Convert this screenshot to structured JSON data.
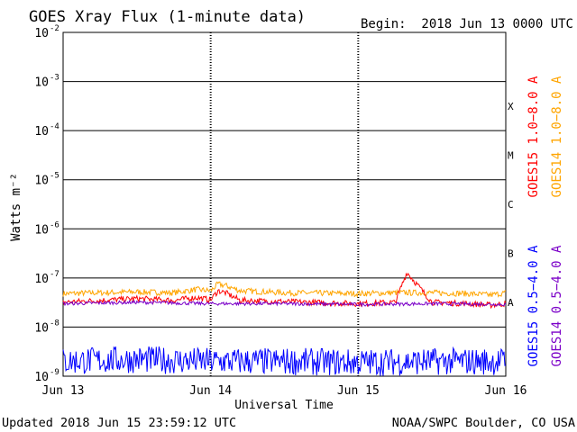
{
  "header": {
    "title": "GOES Xray Flux (1-minute data)",
    "begin": "Begin:  2018 Jun 13 0000 UTC"
  },
  "footer": {
    "updated": "Updated 2018 Jun 15 23:59:12 UTC",
    "credit": "NOAA/SWPC Boulder, CO USA"
  },
  "chart_data": {
    "type": "line",
    "title": "GOES Xray Flux (1-minute data)",
    "xlabel": "Universal Time",
    "ylabel": "Watts m⁻²",
    "yscale": "log",
    "ylim": [
      1e-09,
      0.01
    ],
    "y_ticks": [
      {
        "value": 1e-09,
        "label": "10",
        "exp": "-9"
      },
      {
        "value": 1e-08,
        "label": "10",
        "exp": "-8"
      },
      {
        "value": 1e-07,
        "label": "10",
        "exp": "-7"
      },
      {
        "value": 1e-06,
        "label": "10",
        "exp": "-6"
      },
      {
        "value": 1e-05,
        "label": "10",
        "exp": "-5"
      },
      {
        "value": 0.0001,
        "label": "10",
        "exp": "-4"
      },
      {
        "value": 0.001,
        "label": "10",
        "exp": "-3"
      },
      {
        "value": 0.01,
        "label": "10",
        "exp": "-2"
      }
    ],
    "x_ticks": [
      "Jun 13",
      "Jun 14",
      "Jun 15",
      "Jun 16"
    ],
    "xlim_days": [
      0,
      3
    ],
    "flare_classes": [
      {
        "label": "X",
        "value": 0.000316
      },
      {
        "label": "M",
        "value": 3.16e-05
      },
      {
        "label": "C",
        "value": 3.16e-06
      },
      {
        "label": "B",
        "value": 3.16e-07
      },
      {
        "label": "A",
        "value": 3.16e-08
      }
    ],
    "legend": [
      {
        "name": "GOES15 1.0−8.0 A",
        "color": "#ff0000"
      },
      {
        "name": "GOES14 1.0−8.0 A",
        "color": "#ffa500"
      },
      {
        "name": "GOES15 0.5−4.0 A",
        "color": "#0000ff"
      },
      {
        "name": "GOES14 0.5−4.0 A",
        "color": "#7b00c8"
      }
    ],
    "series": [
      {
        "name": "GOES14 1.0−8.0 A",
        "color": "#ffa500",
        "x": [
          0,
          0.25,
          0.5,
          0.75,
          0.9,
          1.0,
          1.05,
          1.1,
          1.2,
          1.5,
          2.0,
          2.25,
          2.5,
          2.75,
          2.9,
          3.0
        ],
        "y": [
          4.8e-08,
          5e-08,
          5.2e-08,
          5e-08,
          5.8e-08,
          5.5e-08,
          7.5e-08,
          7e-08,
          5.5e-08,
          5e-08,
          4.8e-08,
          5e-08,
          5e-08,
          4.8e-08,
          4.5e-08,
          5e-08
        ]
      },
      {
        "name": "GOES15 1.0−8.0 A",
        "color": "#ff0000",
        "x": [
          0,
          0.25,
          0.5,
          0.75,
          0.9,
          1.0,
          1.05,
          1.1,
          1.2,
          1.5,
          2.0,
          2.25,
          2.33,
          2.5,
          2.75,
          2.9,
          3.0
        ],
        "y": [
          3.2e-08,
          3.5e-08,
          3.8e-08,
          3.5e-08,
          4e-08,
          3.6e-08,
          5.5e-08,
          5e-08,
          3.5e-08,
          3.3e-08,
          3e-08,
          3.2e-08,
          1.3e-07,
          3.2e-08,
          3e-08,
          2.8e-08,
          3e-08
        ]
      },
      {
        "name": "GOES14 0.5−4.0 A",
        "color": "#7b00c8",
        "x": [
          0,
          0.5,
          1.0,
          1.5,
          2.0,
          2.5,
          3.0
        ],
        "y": [
          3e-08,
          3.2e-08,
          3e-08,
          3e-08,
          2.9e-08,
          3e-08,
          2.9e-08
        ]
      },
      {
        "name": "GOES15 0.5−4.0 A",
        "color": "#0000ff",
        "x": [
          0,
          0.5,
          1.0,
          1.5,
          2.0,
          2.5,
          3.0
        ],
        "y": [
          2e-09,
          2.2e-09,
          2e-09,
          2e-09,
          1.9e-09,
          2e-09,
          2e-09
        ]
      }
    ]
  }
}
